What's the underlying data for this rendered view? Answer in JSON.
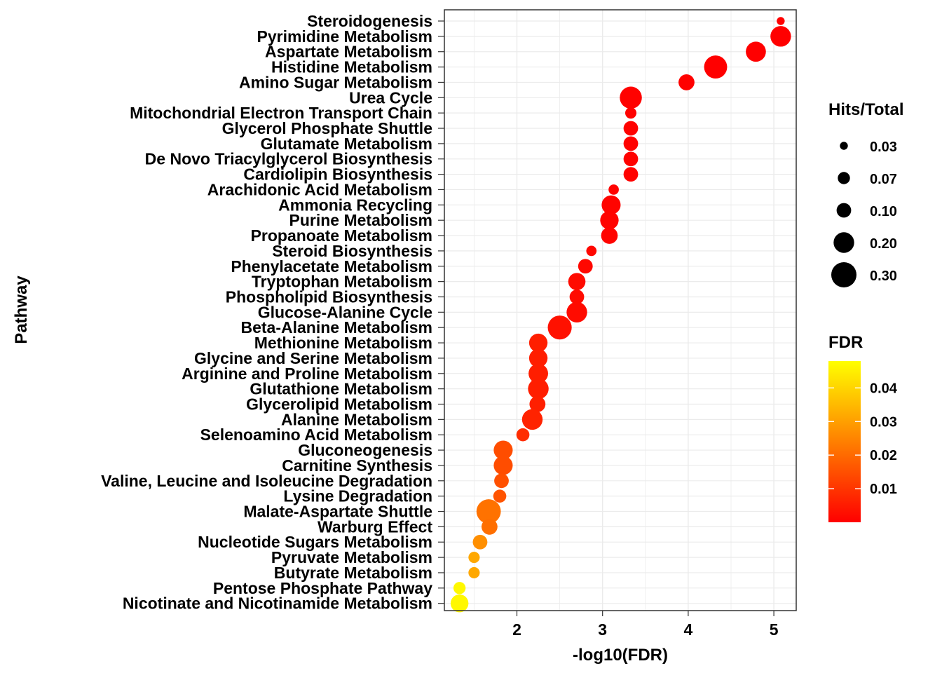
{
  "chart_data": {
    "type": "scatter",
    "xlabel": "-log10(FDR)",
    "ylabel": "Pathway",
    "xlim": [
      1.2,
      5.3
    ],
    "x_ticks": [
      2,
      3,
      4,
      5
    ],
    "grid": true,
    "legend_placement": "right",
    "size_legend": {
      "title": "Hits/Total",
      "values": [
        0.03,
        0.07,
        0.1,
        0.2,
        0.3
      ],
      "labels": [
        "0.03",
        "0.07",
        "0.10",
        "0.20",
        "0.30"
      ]
    },
    "color_legend": {
      "title": "FDR",
      "range": [
        0.0,
        0.048
      ],
      "ticks": [
        0.01,
        0.02,
        0.03,
        0.04
      ],
      "labels": [
        "0.01",
        "0.02",
        "0.03",
        "0.04"
      ],
      "low_color": "#ff0000",
      "high_color": "#ffff00"
    },
    "points": [
      {
        "pathway": "Steroidogenesis",
        "x": 5.08,
        "hits_total": 0.03
      },
      {
        "pathway": "Pyrimidine Metabolism",
        "x": 5.08,
        "hits_total": 0.2
      },
      {
        "pathway": "Aspartate Metabolism",
        "x": 4.79,
        "hits_total": 0.19
      },
      {
        "pathway": "Histidine Metabolism",
        "x": 4.32,
        "hits_total": 0.25
      },
      {
        "pathway": "Amino Sugar Metabolism",
        "x": 3.98,
        "hits_total": 0.12
      },
      {
        "pathway": "Urea Cycle",
        "x": 3.33,
        "hits_total": 0.23
      },
      {
        "pathway": "Mitochondrial Electron Transport Chain",
        "x": 3.33,
        "hits_total": 0.06
      },
      {
        "pathway": "Glycerol Phosphate Shuttle",
        "x": 3.33,
        "hits_total": 0.1
      },
      {
        "pathway": "Glutamate Metabolism",
        "x": 3.33,
        "hits_total": 0.1
      },
      {
        "pathway": "De Novo Triacylglycerol Biosynthesis",
        "x": 3.33,
        "hits_total": 0.1
      },
      {
        "pathway": "Cardiolipin Biosynthesis",
        "x": 3.33,
        "hits_total": 0.1
      },
      {
        "pathway": "Arachidonic Acid Metabolism",
        "x": 3.13,
        "hits_total": 0.05
      },
      {
        "pathway": "Ammonia Recycling",
        "x": 3.1,
        "hits_total": 0.17
      },
      {
        "pathway": "Purine Metabolism",
        "x": 3.08,
        "hits_total": 0.16
      },
      {
        "pathway": "Propanoate Metabolism",
        "x": 3.08,
        "hits_total": 0.13
      },
      {
        "pathway": "Steroid Biosynthesis",
        "x": 2.87,
        "hits_total": 0.05
      },
      {
        "pathway": "Phenylacetate Metabolism",
        "x": 2.8,
        "hits_total": 0.1
      },
      {
        "pathway": "Tryptophan Metabolism",
        "x": 2.7,
        "hits_total": 0.14
      },
      {
        "pathway": "Phospholipid Biosynthesis",
        "x": 2.7,
        "hits_total": 0.1
      },
      {
        "pathway": "Glucose-Alanine Cycle",
        "x": 2.7,
        "hits_total": 0.2
      },
      {
        "pathway": "Beta-Alanine Metabolism",
        "x": 2.5,
        "hits_total": 0.27
      },
      {
        "pathway": "Methionine Metabolism",
        "x": 2.25,
        "hits_total": 0.16
      },
      {
        "pathway": "Glycine and Serine Metabolism",
        "x": 2.25,
        "hits_total": 0.16
      },
      {
        "pathway": "Arginine and Proline Metabolism",
        "x": 2.25,
        "hits_total": 0.18
      },
      {
        "pathway": "Glutathione Metabolism",
        "x": 2.25,
        "hits_total": 0.2
      },
      {
        "pathway": "Glycerolipid Metabolism",
        "x": 2.24,
        "hits_total": 0.12
      },
      {
        "pathway": "Alanine Metabolism",
        "x": 2.18,
        "hits_total": 0.2
      },
      {
        "pathway": "Selenoamino Acid Metabolism",
        "x": 2.07,
        "hits_total": 0.08
      },
      {
        "pathway": "Gluconeogenesis",
        "x": 1.84,
        "hits_total": 0.17
      },
      {
        "pathway": "Carnitine Synthesis",
        "x": 1.84,
        "hits_total": 0.17
      },
      {
        "pathway": "Valine, Leucine and Isoleucine Degradation",
        "x": 1.82,
        "hits_total": 0.1
      },
      {
        "pathway": "Lysine Degradation",
        "x": 1.8,
        "hits_total": 0.08
      },
      {
        "pathway": "Malate-Aspartate Shuttle",
        "x": 1.67,
        "hits_total": 0.28
      },
      {
        "pathway": "Warburg Effect",
        "x": 1.68,
        "hits_total": 0.12
      },
      {
        "pathway": "Nucleotide Sugars Metabolism",
        "x": 1.57,
        "hits_total": 0.1
      },
      {
        "pathway": "Pyruvate Metabolism",
        "x": 1.5,
        "hits_total": 0.06
      },
      {
        "pathway": "Butyrate Metabolism",
        "x": 1.5,
        "hits_total": 0.06
      },
      {
        "pathway": "Pentose Phosphate Pathway",
        "x": 1.33,
        "hits_total": 0.07
      },
      {
        "pathway": "Nicotinate and Nicotinamide Metabolism",
        "x": 1.33,
        "hits_total": 0.15
      }
    ]
  }
}
